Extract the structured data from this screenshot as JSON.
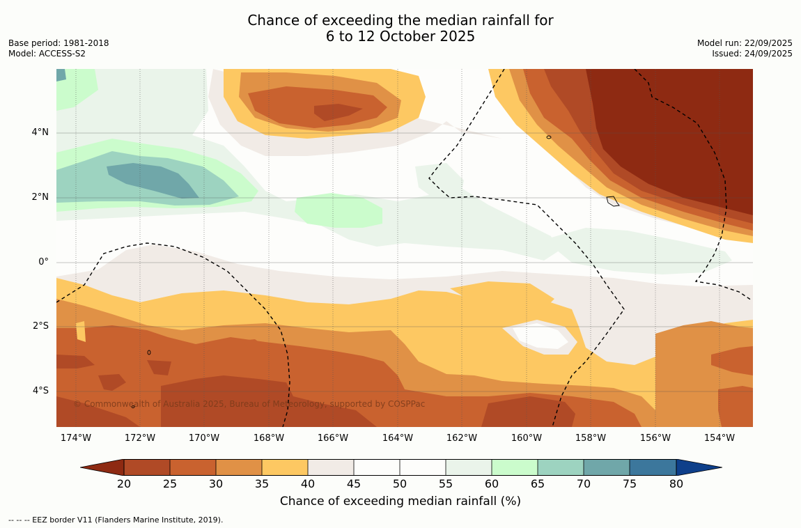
{
  "title": {
    "line1": "Chance of exceeding the median rainfall for",
    "line2": "6 to 12 October 2025"
  },
  "meta": {
    "base_period": "Base period: 1981-2018",
    "model": "Model: ACCESS-S2",
    "model_run": "Model run: 22/09/2025",
    "issued": "Issued: 24/09/2025"
  },
  "credit": "© Commonwealth of Australia 2025, Bureau of Meteorology, supported by COSPPac",
  "axes": {
    "lat_labels": [
      "4°N",
      "2°N",
      "0°",
      "2°S",
      "4°S"
    ],
    "lon_labels": [
      "174°W",
      "172°W",
      "170°W",
      "168°W",
      "166°W",
      "164°W",
      "162°W",
      "160°W",
      "158°W",
      "156°W",
      "154°W"
    ]
  },
  "colorbar": {
    "label": "Chance of exceeding median rainfall (%)",
    "ticks": [
      "20",
      "25",
      "30",
      "35",
      "40",
      "45",
      "50",
      "55",
      "60",
      "65",
      "70",
      "75",
      "80"
    ],
    "colors": [
      "#8e2a12",
      "#b04a26",
      "#c9622f",
      "#e09146",
      "#fdc862",
      "#f1ebe6",
      "#fdfdfb",
      "#fdfdfb",
      "#eaf4ea",
      "#cbfccc",
      "#9dd3c0",
      "#70a7a9",
      "#3c779c",
      "#0e3f8a"
    ]
  },
  "footnote": "--  --  -- EEZ border V11 (Flanders Marine Institute, 2019).",
  "colors": {
    "c20": "#8e2a12",
    "c25": "#b04a26",
    "c30": "#c9622f",
    "c35": "#e09146",
    "c40": "#fdc862",
    "c45": "#f1ebe6",
    "c55": "#fdfdfb",
    "c60": "#eaf4ea",
    "c65": "#cbfccc",
    "c70": "#9dd3c0",
    "c75": "#70a7a9"
  }
}
